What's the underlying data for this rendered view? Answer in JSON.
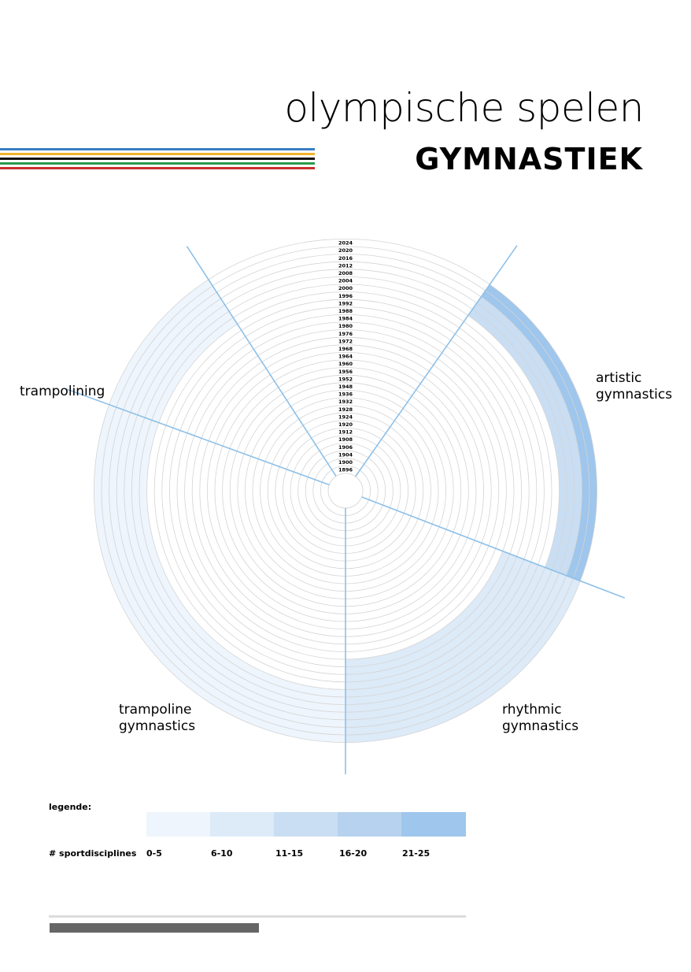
{
  "header": {
    "title": "olympische spelen",
    "subtitle": "GYMNASTIEK"
  },
  "stripe_colors": [
    "#3a7ec2",
    "#f0b12a",
    "#111111",
    "#2a9a4a",
    "#c8302c"
  ],
  "chart_data": {
    "type": "radial",
    "title": "olympische spelen",
    "subtitle": "GYMNASTIEK",
    "years": [
      "1896",
      "1900",
      "1904",
      "1906",
      "1908",
      "1912",
      "1920",
      "1924",
      "1928",
      "1932",
      "1936",
      "1948",
      "1952",
      "1956",
      "1960",
      "1964",
      "1968",
      "1972",
      "1976",
      "1980",
      "1984",
      "1988",
      "1992",
      "1996",
      "2000",
      "2004",
      "2008",
      "2012",
      "2016",
      "2020",
      "2024"
    ],
    "categories": [
      {
        "name": "artistic gymnastics",
        "label": "artistic\ngymnastics"
      },
      {
        "name": "rhythmic gymnastics",
        "label": "rhythmic\ngymnastics"
      },
      {
        "name": "trampoline gymnastics",
        "label": "trampoline\ngymnastics"
      },
      {
        "name": "trampolining",
        "label": "trampolining"
      }
    ],
    "bands": [
      {
        "category": "artistic gymnastics",
        "from": "2020",
        "to": "2024",
        "level": "21-25"
      },
      {
        "category": "artistic gymnastics",
        "from": "2008",
        "to": "2016",
        "level": "11-15"
      },
      {
        "category": "rhythmic gymnastics",
        "from": "1984",
        "to": "2024",
        "level": "6-10"
      },
      {
        "category": "trampoline gymnastics",
        "from": "2000",
        "to": "2024",
        "level": "0-5"
      },
      {
        "category": "trampolining",
        "from": "2000",
        "to": "2024",
        "level": "0-5"
      }
    ],
    "legend": {
      "title": "legende:",
      "caption": "# sportdisciplines",
      "items": [
        {
          "range": "0-5",
          "color": "#eef5fc"
        },
        {
          "range": "6-10",
          "color": "#ddeaf8"
        },
        {
          "range": "11-15",
          "color": "#c9def3"
        },
        {
          "range": "16-20",
          "color": "#b6d2ee"
        },
        {
          "range": "21-25",
          "color": "#9fc6ec"
        }
      ]
    },
    "colors": {
      "ring": "#d4d4d4",
      "divider": "#8dc0e8"
    }
  }
}
